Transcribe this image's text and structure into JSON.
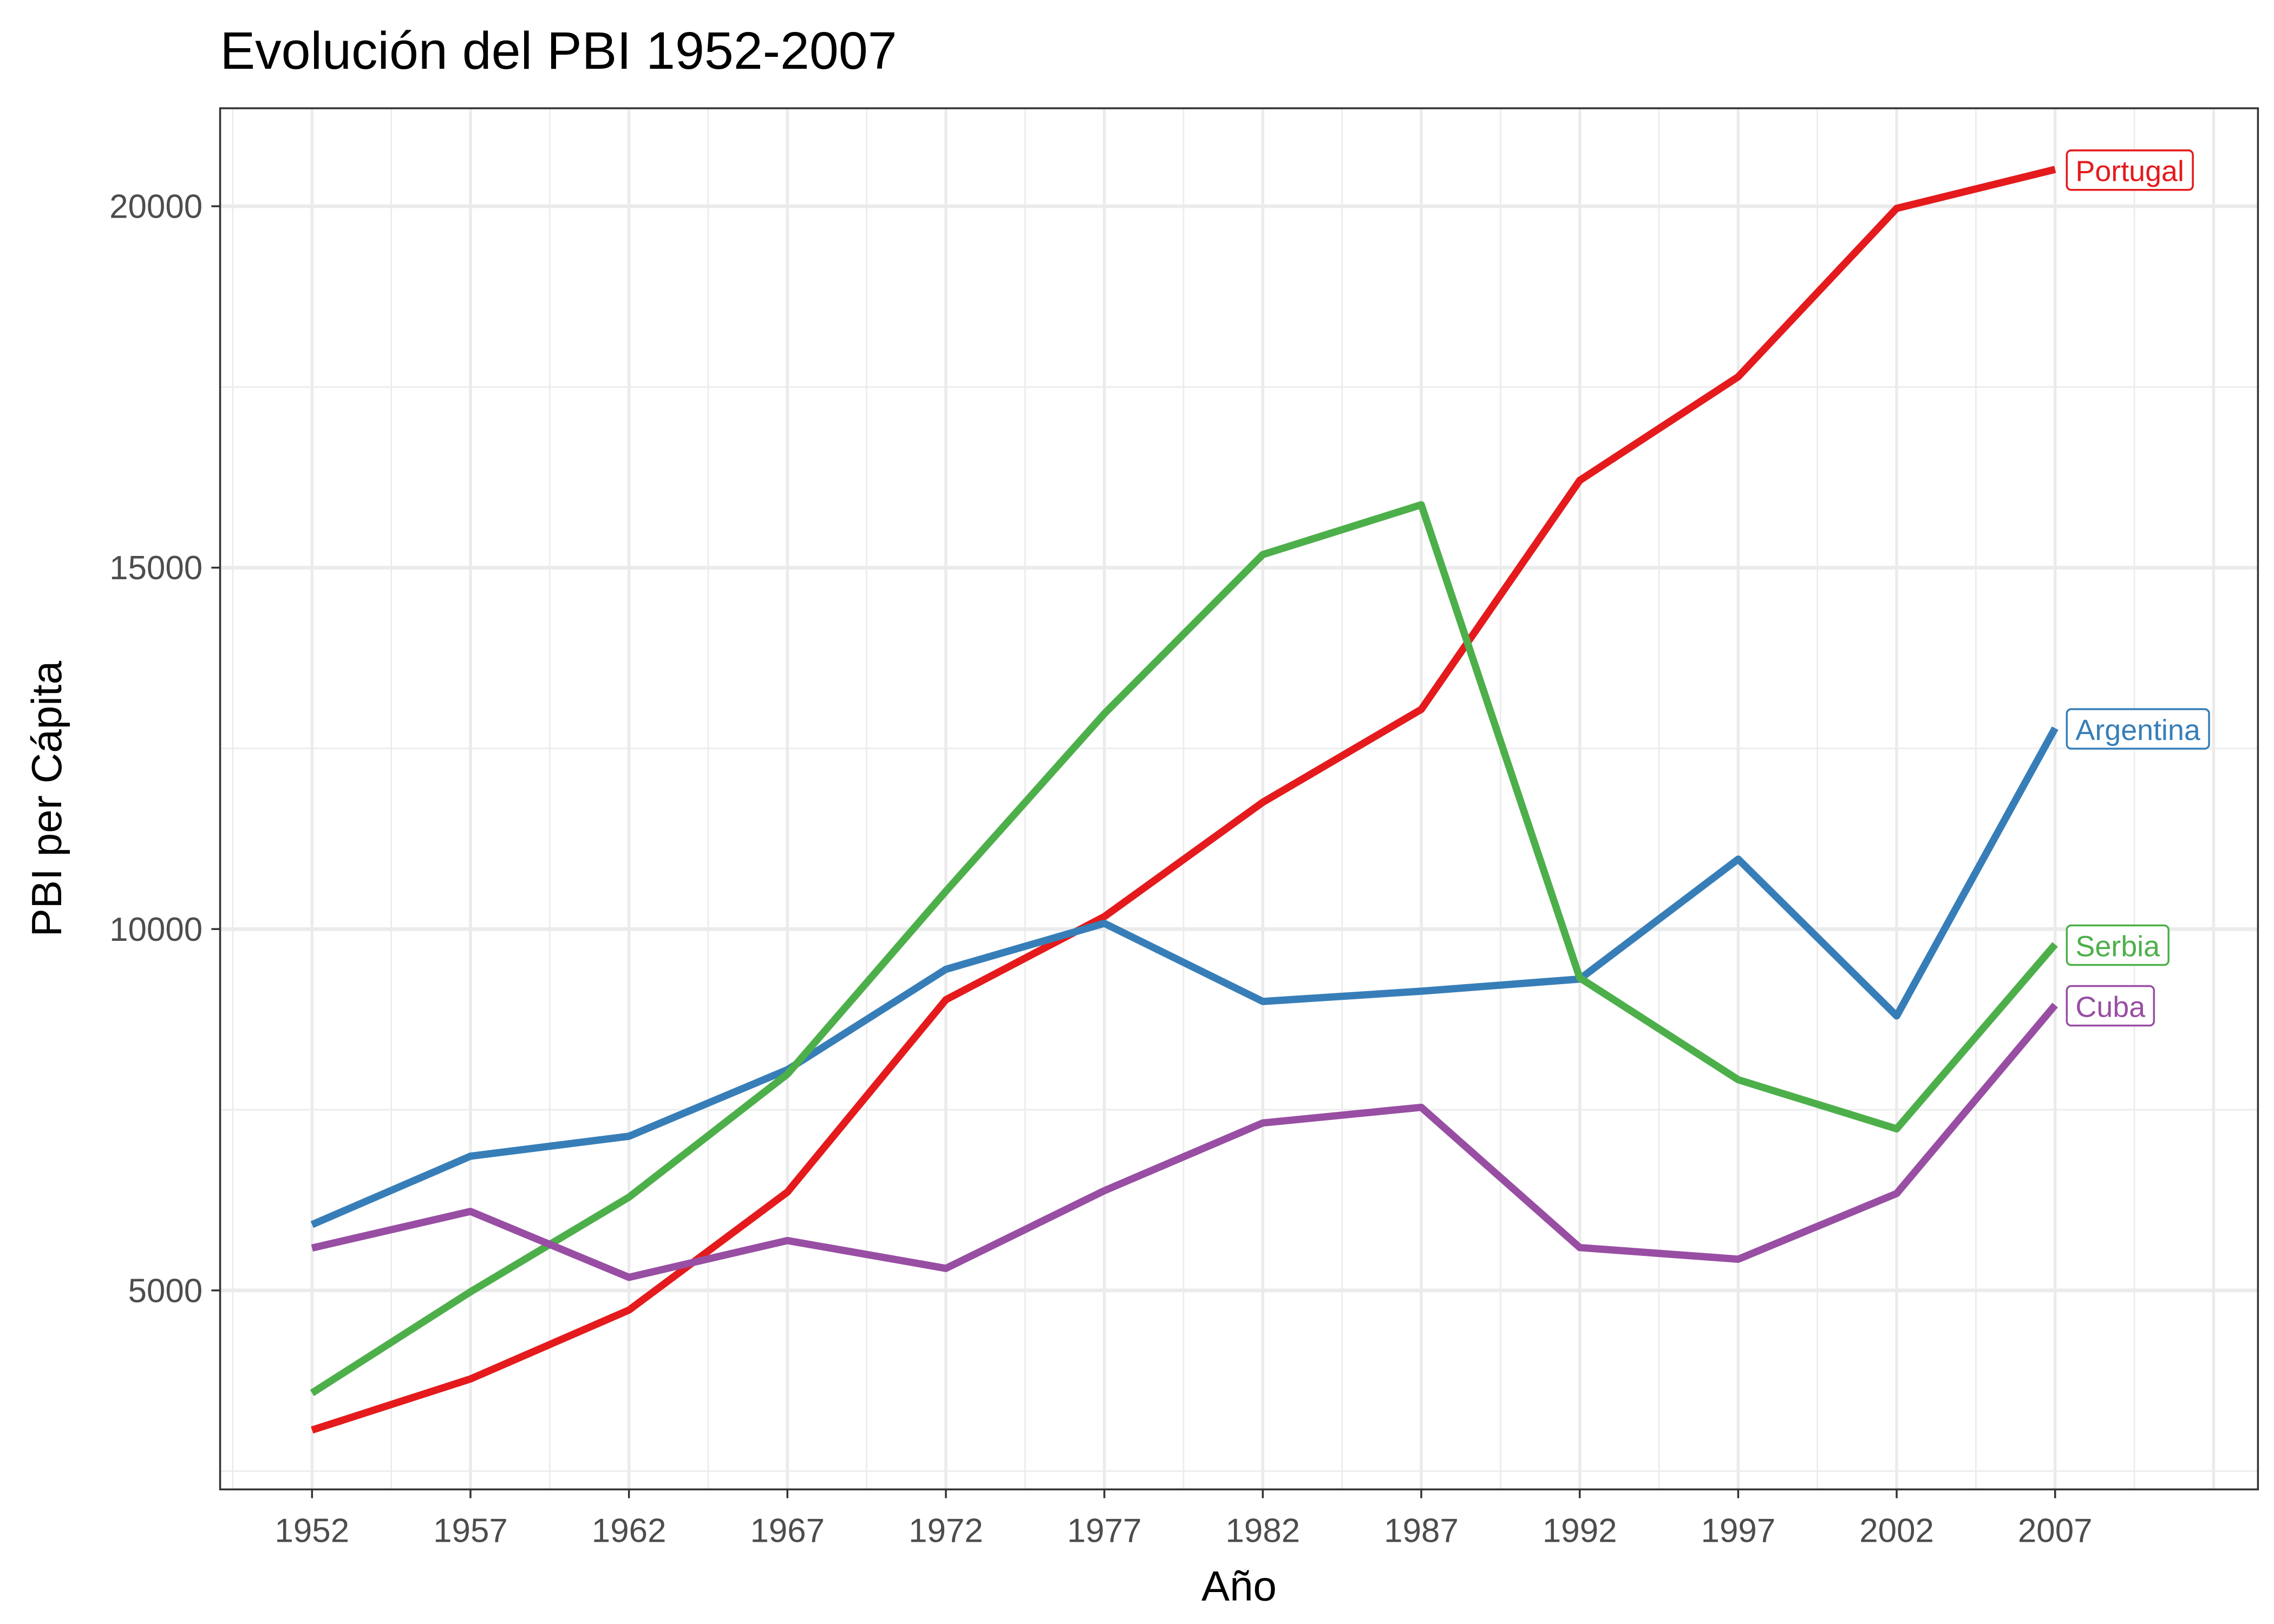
{
  "chart_data": {
    "type": "line",
    "title": "Evolución del PBI 1952-2007",
    "xlabel": "Año",
    "ylabel": "PBI per Cápita",
    "x": [
      1952,
      1957,
      1962,
      1967,
      1972,
      1977,
      1982,
      1987,
      1992,
      1997,
      2002,
      2007
    ],
    "x_tick_labels": [
      "1952",
      "1957",
      "1962",
      "1967",
      "1972",
      "1977",
      "1982",
      "1987",
      "1992",
      "1997",
      "2002",
      "2007"
    ],
    "y_ticks": [
      5000,
      10000,
      15000,
      20000
    ],
    "y_tick_labels": [
      "5000",
      "10000",
      "15000",
      "20000"
    ],
    "xlim": [
      1949.1,
      2013.4
    ],
    "ylim": [
      2247,
      21356
    ],
    "grid": true,
    "legend": "direct labels at right end of lines",
    "series": [
      {
        "name": "Portugal",
        "color": "#E41A1C",
        "values": [
          3068,
          3775,
          4728,
          6361,
          9022,
          10172,
          11754,
          13039,
          16207,
          17641,
          19971,
          20510
        ]
      },
      {
        "name": "Argentina",
        "color": "#377EB8",
        "values": [
          5911,
          6857,
          7133,
          8053,
          9443,
          10079,
          8998,
          9140,
          9308,
          10967,
          8798,
          12779
        ]
      },
      {
        "name": "Serbia",
        "color": "#4DAF4A",
        "values": [
          3581,
          4981,
          6290,
          7992,
          10523,
          12980,
          15181,
          15870,
          9325,
          7915,
          7236,
          9787
        ]
      },
      {
        "name": "Cuba",
        "color": "#984EA3",
        "values": [
          5587,
          6093,
          5181,
          5690,
          5305,
          6380,
          7317,
          7533,
          5593,
          5432,
          6341,
          8948
        ]
      }
    ]
  }
}
